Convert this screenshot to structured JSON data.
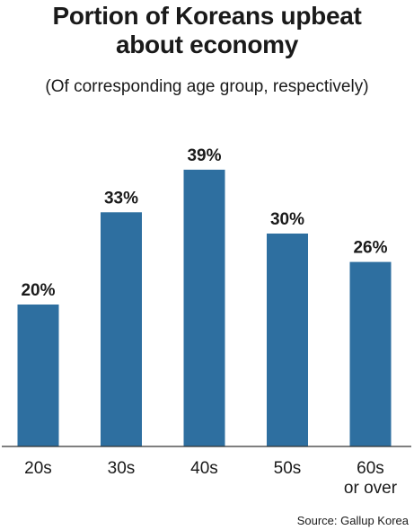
{
  "title_line1": "Portion of Koreans upbeat",
  "title_line2": "about economy",
  "subtitle": "(Of corresponding age group, respectively)",
  "source": "Source: Gallup Korea",
  "chart_data": {
    "type": "bar",
    "title": "Portion of Koreans upbeat about economy",
    "subtitle": "(Of corresponding age group, respectively)",
    "categories": [
      [
        "20s"
      ],
      [
        "30s"
      ],
      [
        "40s"
      ],
      [
        "50s"
      ],
      [
        "60s",
        "or over"
      ]
    ],
    "values": [
      20,
      33,
      39,
      30,
      26
    ],
    "value_labels": [
      "20%",
      "33%",
      "39%",
      "30%",
      "26%"
    ],
    "unit": "%",
    "ylim": [
      0,
      40
    ],
    "bar_color": "#2e6fa0",
    "grid": false,
    "legend": "none"
  }
}
